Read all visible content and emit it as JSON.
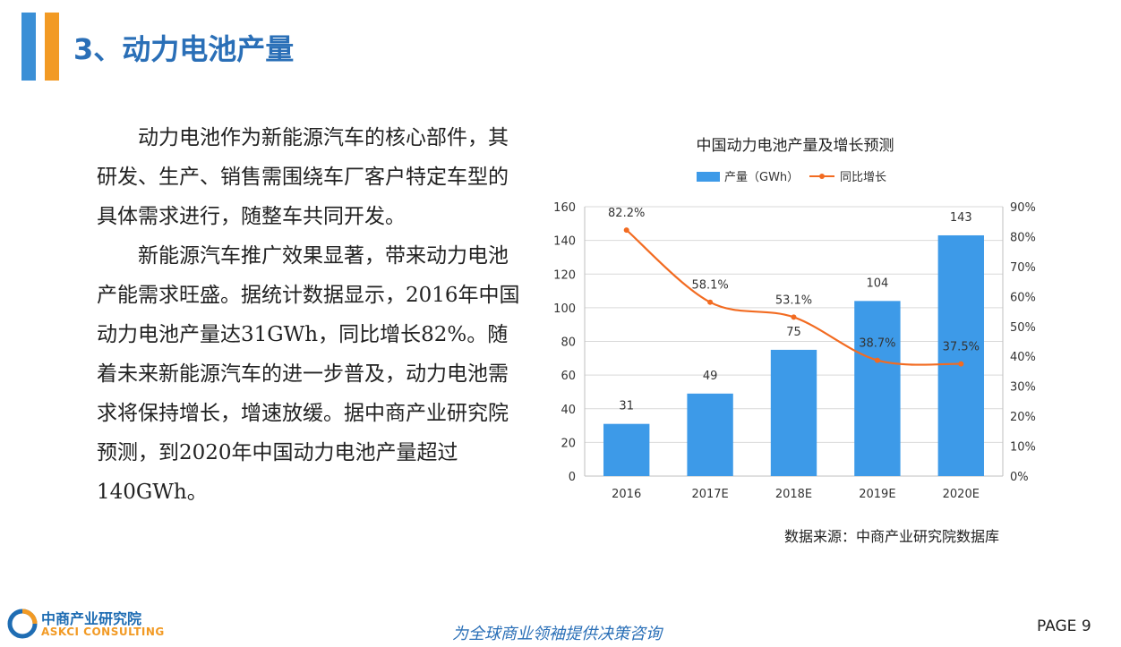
{
  "header": {
    "title": "3、动力电池产量",
    "accent_colors": [
      "#3a8fd6",
      "#f29a24"
    ]
  },
  "body": {
    "paragraphs": [
      "动力电池作为新能源汽车的核心部件，其研发、生产、销售需围绕车厂客户特定车型的具体需求进行，随整车共同开发。",
      "新能源汽车推广效果显著，带来动力电池产能需求旺盛。据统计数据显示，2016年中国动力电池产量达31GWh，同比增长82%。随着未来新能源汽车的进一步普及，动力电池需求将保持增长，增速放缓。据中商产业研究院预测，到2020年中国动力电池产量超过140GWh。"
    ]
  },
  "chart_data": {
    "type": "bar",
    "title": "中国动力电池产量及增长预测",
    "categories": [
      "2016",
      "2017E",
      "2018E",
      "2019E",
      "2020E"
    ],
    "series": [
      {
        "name": "产量（GWh）",
        "type": "bar",
        "axis": "left",
        "color": "#3d9ae8",
        "values": [
          31,
          49,
          75,
          104,
          143
        ]
      },
      {
        "name": "同比增长",
        "type": "line",
        "axis": "right",
        "color": "#f26b21",
        "values": [
          82.2,
          58.1,
          53.1,
          38.7,
          37.5
        ],
        "labels": [
          "82.2%",
          "58.1%",
          "53.1%",
          "38.7%",
          "37.5%"
        ]
      }
    ],
    "ylim": [
      0,
      160
    ],
    "y_ticks": [
      "0",
      "20",
      "40",
      "60",
      "80",
      "100",
      "120",
      "140",
      "160"
    ],
    "y2lim": [
      0,
      90
    ],
    "y2_ticks": [
      "0%",
      "10%",
      "20%",
      "30%",
      "40%",
      "50%",
      "60%",
      "70%",
      "80%",
      "90%"
    ],
    "grid": true,
    "legend_position": "top"
  },
  "source": "数据来源：中商产业研究院数据库",
  "footer": {
    "logo_cn": "中商产业研究院",
    "logo_en": "ASKCI CONSULTING",
    "slogan": "为全球商业领袖提供决策咨询",
    "page_label": "PAGE 9"
  }
}
